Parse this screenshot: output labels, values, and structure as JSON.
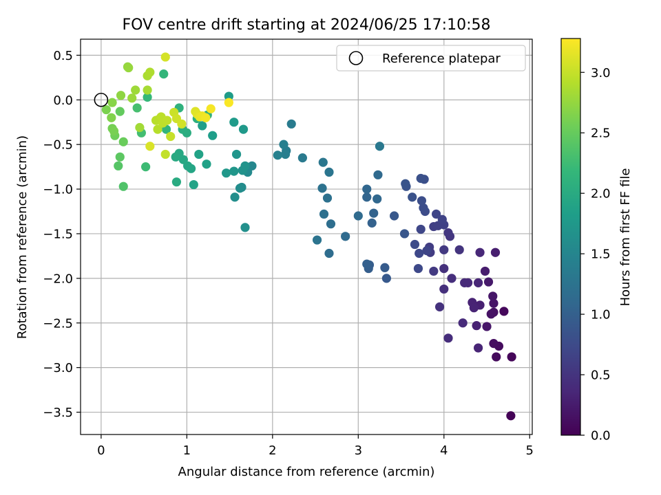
{
  "chart_data": {
    "type": "scatter",
    "title": "FOV centre drift starting at 2024/06/25 17:10:58",
    "xlabel": "Angular distance from reference (arcmin)",
    "ylabel": "Rotation from reference (arcmin)",
    "xlim": [
      -0.24,
      5.03
    ],
    "ylim": [
      -3.75,
      0.68
    ],
    "xticks": [
      0,
      1,
      2,
      3,
      4,
      5
    ],
    "yticks": [
      0.5,
      0.0,
      -0.5,
      -1.0,
      -1.5,
      -2.0,
      -2.5,
      -3.0,
      -3.5
    ],
    "xtick_labels": [
      "0",
      "1",
      "2",
      "3",
      "4",
      "5"
    ],
    "ytick_labels": [
      "0.5",
      "0.0",
      "−0.5",
      "−1.0",
      "−1.5",
      "−2.0",
      "−2.5",
      "−3.0",
      "−3.5"
    ],
    "grid": true,
    "legend": {
      "position": "top-right",
      "entry": "Reference platepar",
      "marker": "open-circle"
    },
    "reference_point": {
      "x": 0,
      "y": 0
    },
    "colorbar": {
      "label": "Hours from first FF file",
      "colormap": "viridis",
      "range": [
        0.0,
        3.28
      ],
      "ticks": [
        0.0,
        0.5,
        1.0,
        1.5,
        2.0,
        2.5,
        3.0
      ],
      "tick_labels": [
        "0.0",
        "0.5",
        "1.0",
        "1.5",
        "2.0",
        "2.5",
        "3.0"
      ]
    },
    "colormap_stops": [
      "#440154",
      "#482878",
      "#3e4989",
      "#31688e",
      "#26828e",
      "#1f9e89",
      "#35b779",
      "#6ece58",
      "#b5de2b",
      "#fde725"
    ],
    "points": [
      [
        4.78,
        -3.54,
        0.02
      ],
      [
        4.79,
        -2.88,
        0.05
      ],
      [
        4.7,
        -2.37,
        0.07
      ],
      [
        4.61,
        -2.88,
        0.08
      ],
      [
        4.64,
        -2.76,
        0.1
      ],
      [
        4.58,
        -2.73,
        0.12
      ],
      [
        4.58,
        -2.38,
        0.14
      ],
      [
        4.55,
        -2.4,
        0.16
      ],
      [
        4.58,
        -2.28,
        0.18
      ],
      [
        4.57,
        -2.2,
        0.2
      ],
      [
        4.5,
        -2.54,
        0.2
      ],
      [
        4.52,
        -2.04,
        0.22
      ],
      [
        4.48,
        -1.92,
        0.25
      ],
      [
        4.6,
        -1.71,
        0.27
      ],
      [
        4.42,
        -2.3,
        0.29
      ],
      [
        4.38,
        -2.53,
        0.3
      ],
      [
        4.33,
        -2.27,
        0.32
      ],
      [
        4.35,
        -2.33,
        0.33
      ],
      [
        4.4,
        -2.78,
        0.34
      ],
      [
        4.4,
        -2.05,
        0.35
      ],
      [
        4.42,
        -1.71,
        0.36
      ],
      [
        4.28,
        -2.05,
        0.38
      ],
      [
        4.24,
        -2.05,
        0.39
      ],
      [
        4.22,
        -2.5,
        0.4
      ],
      [
        4.05,
        -2.67,
        0.42
      ],
      [
        4.09,
        -2.0,
        0.44
      ],
      [
        4.0,
        -2.12,
        0.45
      ],
      [
        4.0,
        -1.89,
        0.46
      ],
      [
        3.95,
        -2.32,
        0.48
      ],
      [
        4.18,
        -1.68,
        0.5
      ],
      [
        4.07,
        -1.53,
        0.52
      ],
      [
        4.05,
        -1.49,
        0.53
      ],
      [
        4.0,
        -1.68,
        0.55
      ],
      [
        3.88,
        -1.92,
        0.56
      ],
      [
        3.84,
        -1.71,
        0.58
      ],
      [
        3.83,
        -1.65,
        0.6
      ],
      [
        3.88,
        -1.42,
        0.62
      ],
      [
        3.93,
        -1.41,
        0.63
      ],
      [
        4.0,
        -1.4,
        0.64
      ],
      [
        3.98,
        -1.34,
        0.66
      ],
      [
        3.91,
        -1.28,
        0.68
      ],
      [
        3.8,
        -1.69,
        0.69
      ],
      [
        3.73,
        -1.45,
        0.71
      ],
      [
        3.71,
        -1.72,
        0.72
      ],
      [
        3.7,
        -1.89,
        0.73
      ],
      [
        3.66,
        -1.62,
        0.75
      ],
      [
        3.78,
        -1.25,
        0.76
      ],
      [
        3.76,
        -1.21,
        0.78
      ],
      [
        3.74,
        -1.13,
        0.79
      ],
      [
        3.77,
        -0.89,
        0.8
      ],
      [
        3.73,
        -0.88,
        0.82
      ],
      [
        3.63,
        -1.09,
        0.83
      ],
      [
        3.56,
        -0.97,
        0.85
      ],
      [
        3.55,
        -0.94,
        0.86
      ],
      [
        3.54,
        -1.5,
        0.88
      ],
      [
        3.42,
        -1.3,
        0.9
      ],
      [
        3.33,
        -2.0,
        0.92
      ],
      [
        3.31,
        -1.88,
        0.94
      ],
      [
        3.13,
        -1.85,
        0.96
      ],
      [
        3.12,
        -1.89,
        0.98
      ],
      [
        3.1,
        -1.84,
        1.0
      ],
      [
        3.16,
        -1.38,
        1.02
      ],
      [
        3.18,
        -1.27,
        1.04
      ],
      [
        3.1,
        -1.09,
        1.06
      ],
      [
        3.1,
        -1.0,
        1.08
      ],
      [
        3.22,
        -1.11,
        1.1
      ],
      [
        3.23,
        -0.84,
        1.12
      ],
      [
        3.0,
        -1.3,
        1.13
      ],
      [
        2.85,
        -1.53,
        1.14
      ],
      [
        2.66,
        -1.72,
        1.16
      ],
      [
        2.68,
        -1.39,
        1.18
      ],
      [
        2.6,
        -1.28,
        1.2
      ],
      [
        2.64,
        -1.1,
        1.22
      ],
      [
        2.58,
        -0.99,
        1.24
      ],
      [
        2.52,
        -1.57,
        1.26
      ],
      [
        2.66,
        -0.81,
        1.28
      ],
      [
        2.59,
        -0.7,
        1.3
      ],
      [
        3.25,
        -0.52,
        1.32
      ],
      [
        2.35,
        -0.65,
        1.34
      ],
      [
        2.22,
        -0.27,
        1.36
      ],
      [
        2.16,
        -0.57,
        1.38
      ],
      [
        2.15,
        -0.61,
        1.4
      ],
      [
        2.13,
        -0.5,
        1.42
      ],
      [
        2.06,
        -0.62,
        1.44
      ],
      [
        1.76,
        -0.74,
        1.52
      ],
      [
        1.71,
        -0.81,
        1.56
      ],
      [
        1.64,
        -0.98,
        1.58
      ],
      [
        1.62,
        -0.99,
        1.6
      ],
      [
        1.56,
        -1.09,
        1.62
      ],
      [
        1.68,
        -1.43,
        1.64
      ],
      [
        1.65,
        -0.79,
        1.66
      ],
      [
        1.68,
        -0.74,
        1.68
      ],
      [
        1.58,
        -0.61,
        1.7
      ],
      [
        1.55,
        -0.8,
        1.72
      ],
      [
        1.46,
        -0.82,
        1.74
      ],
      [
        1.66,
        -0.33,
        1.76
      ],
      [
        1.55,
        -0.25,
        1.78
      ],
      [
        1.49,
        0.04,
        1.8
      ],
      [
        1.3,
        -0.4,
        1.82
      ],
      [
        1.18,
        -0.29,
        1.84
      ],
      [
        1.23,
        -0.72,
        1.86
      ],
      [
        1.14,
        -0.61,
        1.88
      ],
      [
        1.08,
        -0.95,
        1.9
      ],
      [
        1.05,
        -0.77,
        1.92
      ],
      [
        1.01,
        -0.74,
        1.94
      ],
      [
        0.96,
        -0.67,
        1.96
      ],
      [
        0.91,
        -0.6,
        1.97
      ],
      [
        0.87,
        -0.64,
        1.98
      ],
      [
        0.88,
        -0.92,
        2.0
      ],
      [
        1.0,
        -0.37,
        2.02
      ],
      [
        0.95,
        -0.33,
        2.04
      ],
      [
        1.12,
        -0.21,
        2.06
      ],
      [
        1.24,
        -0.17,
        2.08
      ],
      [
        0.91,
        -0.09,
        2.1
      ],
      [
        0.76,
        -0.33,
        2.14
      ],
      [
        0.73,
        0.29,
        2.16
      ],
      [
        0.54,
        0.03,
        2.18
      ],
      [
        0.52,
        -0.75,
        2.24
      ],
      [
        0.47,
        -0.37,
        2.28
      ],
      [
        0.42,
        -0.09,
        2.3
      ],
      [
        0.26,
        -0.97,
        2.36
      ],
      [
        0.2,
        -0.74,
        2.4
      ],
      [
        0.22,
        -0.64,
        2.44
      ],
      [
        0.22,
        -0.13,
        2.48
      ],
      [
        0.26,
        -0.47,
        2.52
      ],
      [
        0.16,
        -0.4,
        2.55
      ],
      [
        0.13,
        -0.32,
        2.58
      ],
      [
        0.15,
        -0.35,
        2.6
      ],
      [
        0.06,
        -0.11,
        2.62
      ],
      [
        0.12,
        -0.2,
        2.65
      ],
      [
        0.13,
        -0.03,
        2.68
      ],
      [
        0.23,
        0.05,
        2.72
      ],
      [
        0.31,
        0.37,
        2.74
      ],
      [
        0.32,
        0.36,
        2.76
      ],
      [
        0.36,
        0.02,
        2.78
      ],
      [
        0.4,
        0.11,
        2.8
      ],
      [
        0.45,
        -0.31,
        2.82
      ],
      [
        0.54,
        0.11,
        2.84
      ],
      [
        0.54,
        0.27,
        2.86
      ],
      [
        0.57,
        0.31,
        2.88
      ],
      [
        0.67,
        -0.22,
        2.9
      ],
      [
        0.66,
        -0.33,
        2.92
      ],
      [
        0.64,
        -0.23,
        2.93
      ],
      [
        0.7,
        -0.19,
        2.95
      ],
      [
        0.72,
        -0.26,
        2.96
      ],
      [
        0.77,
        -0.23,
        2.97
      ],
      [
        0.75,
        -0.61,
        2.98
      ],
      [
        0.81,
        -0.41,
        3.0
      ],
      [
        0.85,
        -0.14,
        3.02
      ],
      [
        0.88,
        -0.21,
        3.04
      ],
      [
        0.94,
        -0.27,
        3.06
      ],
      [
        0.75,
        0.48,
        3.07
      ],
      [
        0.57,
        -0.52,
        3.1
      ],
      [
        1.1,
        -0.13,
        3.12
      ],
      [
        1.12,
        -0.16,
        3.14
      ],
      [
        1.15,
        -0.19,
        3.18
      ],
      [
        1.18,
        -0.18,
        3.2
      ],
      [
        1.22,
        -0.2,
        3.22
      ],
      [
        1.28,
        -0.1,
        3.24
      ],
      [
        1.49,
        -0.03,
        3.26
      ]
    ]
  }
}
